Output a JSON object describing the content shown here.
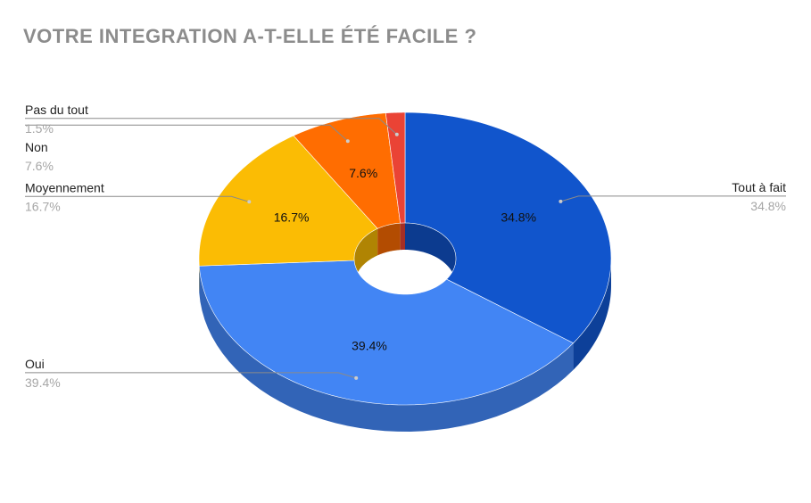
{
  "chart_data": {
    "type": "pie",
    "style": "3d-donut",
    "title": "VOTRE INTEGRATION A-T-ELLE ÉTÉ FACILE ?",
    "slices": [
      {
        "label": "Tout à fait",
        "value": 34.8,
        "display": "34.8%",
        "color": "#1155cc"
      },
      {
        "label": "Oui",
        "value": 39.4,
        "display": "39.4%",
        "color": "#4285f4"
      },
      {
        "label": "Moyennement",
        "value": 16.7,
        "display": "16.7%",
        "color": "#fbbc04"
      },
      {
        "label": "Non",
        "value": 7.6,
        "display": "7.6%",
        "color": "#ff6d01"
      },
      {
        "label": "Pas du tout",
        "value": 1.5,
        "display": "1.5%",
        "color": "#ea4335"
      }
    ],
    "legend": "outside labels with leader lines"
  }
}
